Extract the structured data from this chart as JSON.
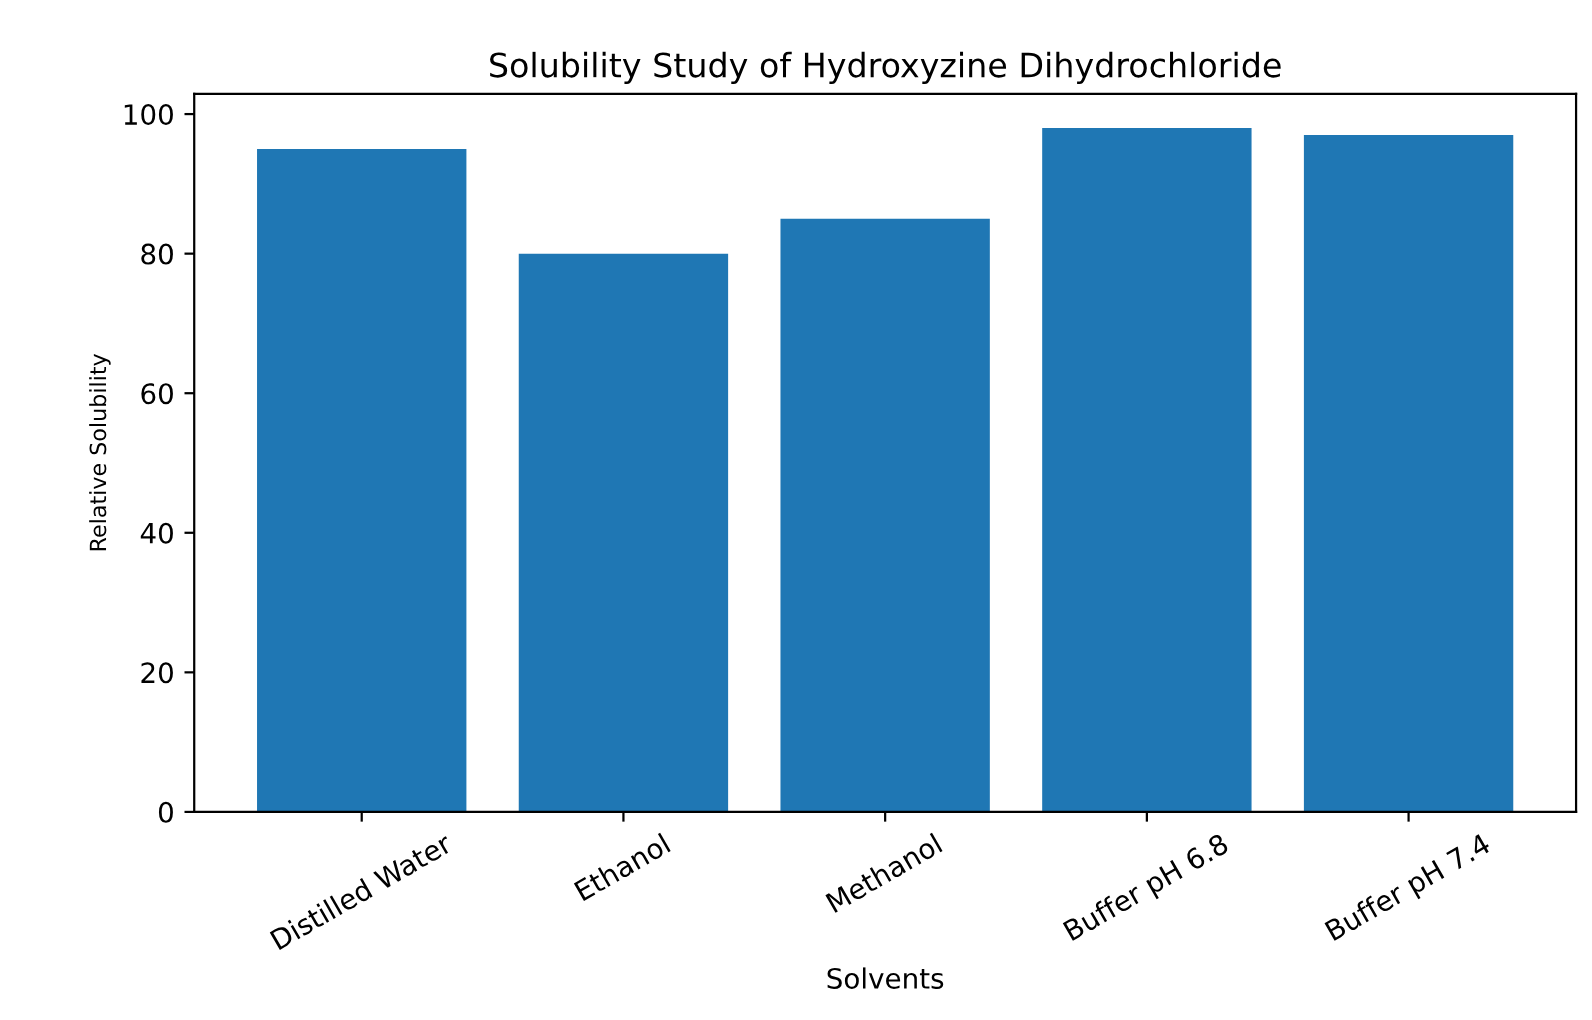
{
  "chart_data": {
    "type": "bar",
    "title": "Solubility Study of Hydroxyzine Dihydrochloride",
    "xlabel": "Solvents",
    "ylabel": "Relative Solubility",
    "categories": [
      "Distilled Water",
      "Ethanol",
      "Methanol",
      "Buffer pH 6.8",
      "Buffer pH 7.4"
    ],
    "values": [
      95,
      80,
      85,
      98,
      97
    ],
    "color": "#1f77b4",
    "ylim": [
      0,
      102.9
    ],
    "yticks": [
      0,
      20,
      40,
      60,
      80,
      100
    ],
    "grid": false,
    "legend": false
  }
}
